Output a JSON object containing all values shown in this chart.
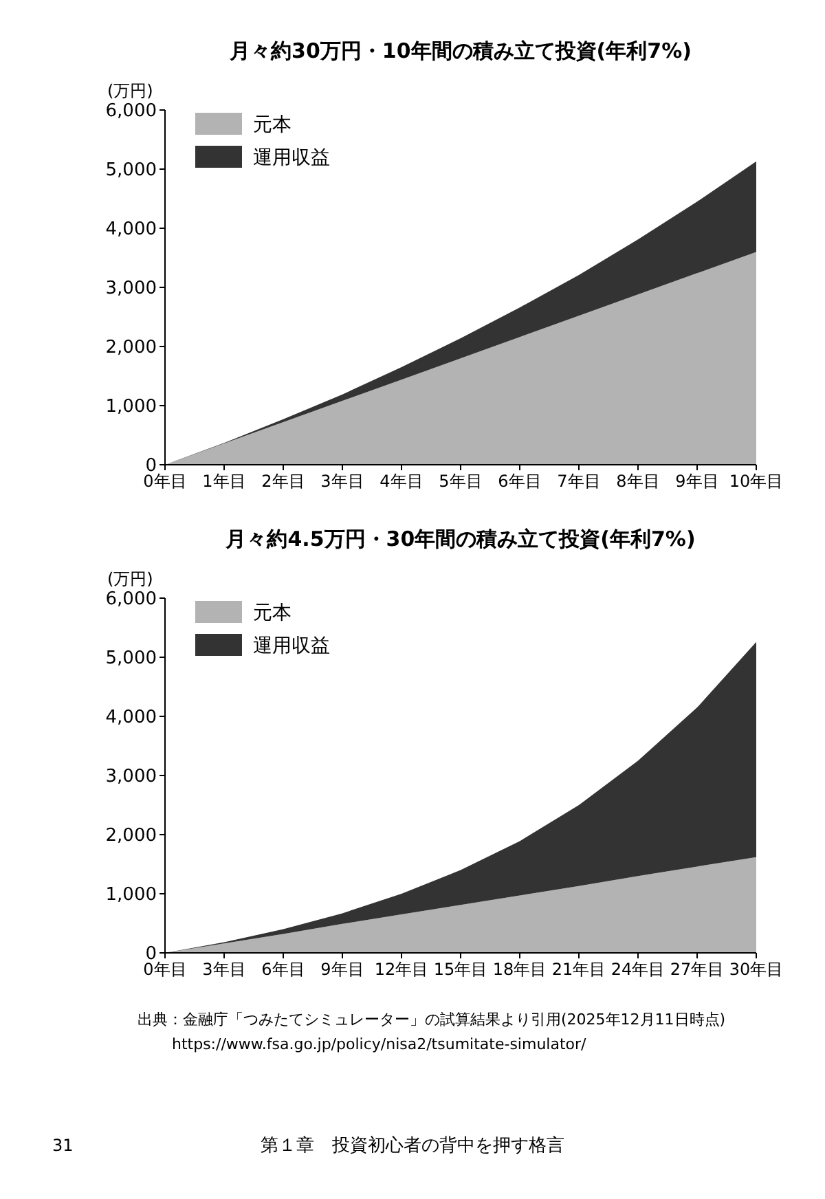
{
  "chart_data": [
    {
      "type": "area",
      "title": "月々約30万円・10年間の積み立て投資(年利7%)",
      "ylabel": "(万円)",
      "stacked": true,
      "legend": "top left",
      "grid": false,
      "categories": [
        "0年目",
        "1年目",
        "2年目",
        "3年目",
        "4年目",
        "5年目",
        "6年目",
        "7年目",
        "8年目",
        "9年目",
        "10年目"
      ],
      "ylim": [
        0,
        6000
      ],
      "yticks": [
        0,
        {
          "value": 1000,
          "label": "1,000"
        },
        {
          "value": 2000,
          "label": "2,000"
        },
        {
          "value": 3000,
          "label": "3,000"
        },
        {
          "value": 4000,
          "label": "4,000"
        },
        {
          "value": 5000,
          "label": "5,000"
        },
        {
          "value": 6000,
          "label": "6,000"
        }
      ],
      "series": [
        {
          "name": "元本",
          "color": "#b3b3b3",
          "values": [
            0,
            360,
            720,
            1080,
            1440,
            1800,
            2160,
            2520,
            2880,
            3240,
            3600
          ]
        },
        {
          "name": "運用収益",
          "color": "#333333",
          "values": [
            0,
            10,
            50,
            110,
            210,
            340,
            500,
            690,
            930,
            1210,
            1530
          ]
        }
      ]
    },
    {
      "type": "area",
      "title": "月々約4.5万円・30年間の積み立て投資(年利7%)",
      "ylabel": "(万円)",
      "stacked": true,
      "legend": "top left",
      "grid": false,
      "categories": [
        "0年目",
        "3年目",
        "6年目",
        "9年目",
        "12年目",
        "15年目",
        "18年目",
        "21年目",
        "24年目",
        "27年目",
        "30年目"
      ],
      "ylim": [
        0,
        6000
      ],
      "yticks": [
        0,
        {
          "value": 1000,
          "label": "1,000"
        },
        {
          "value": 2000,
          "label": "2,000"
        },
        {
          "value": 3000,
          "label": "3,000"
        },
        {
          "value": 4000,
          "label": "4,000"
        },
        {
          "value": 5000,
          "label": "5,000"
        },
        {
          "value": 6000,
          "label": "6,000"
        }
      ],
      "series": [
        {
          "name": "元本",
          "color": "#b3b3b3",
          "values": [
            0,
            160,
            320,
            490,
            650,
            810,
            970,
            1130,
            1300,
            1460,
            1620
          ]
        },
        {
          "name": "運用収益",
          "color": "#333333",
          "values": [
            0,
            20,
            80,
            180,
            350,
            590,
            920,
            1370,
            1950,
            2690,
            3640
          ]
        }
      ],
      "annotations": [
        "出典：金融庁「つみたてシミュレーター」の試算結果より引用(2025年12月11日時点)",
        "https://www.fsa.go.jp/policy/nisa2/tsumitate-simulator/",
        "31",
        "第１章　投資初心者の背中を押す格言"
      ]
    }
  ]
}
